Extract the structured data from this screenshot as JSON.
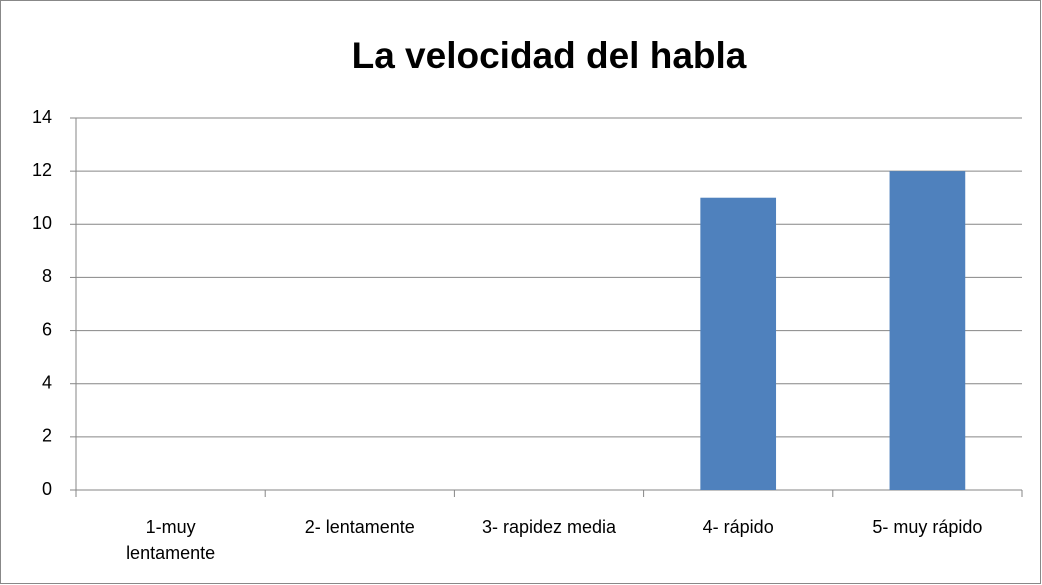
{
  "chart_data": {
    "type": "bar",
    "title": "La velocidad del habla",
    "categories": [
      "1-muy lentamente",
      "2- lentamente",
      "3- rapidez media",
      "4- rápido",
      "5- muy rápido"
    ],
    "values": [
      0,
      0,
      0,
      11,
      12
    ],
    "color": "#4f81bd",
    "ylim": [
      0,
      14
    ],
    "yticks": [
      0,
      2,
      4,
      6,
      8,
      10,
      12,
      14
    ],
    "grid": true
  }
}
